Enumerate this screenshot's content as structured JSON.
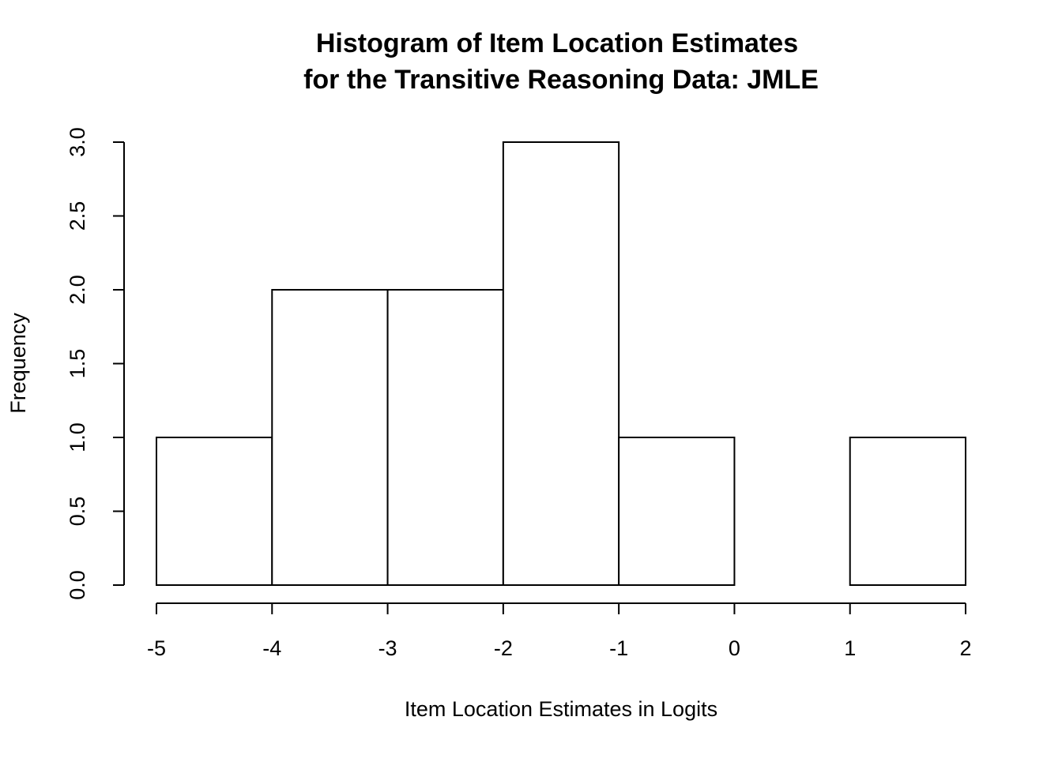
{
  "chart_data": {
    "type": "histogram",
    "title": [
      "Histogram of Item Location Estimates",
      "for the Transitive Reasoning Data: JMLE"
    ],
    "x_label": "Item Location Estimates in Logits",
    "y_label": "Frequency",
    "bins": [
      -5,
      -4,
      -3,
      -2,
      -1,
      0,
      1,
      2
    ],
    "values": [
      1,
      2,
      2,
      3,
      1,
      0,
      1
    ],
    "color": "#ffffff",
    "xlim": [
      -5,
      2
    ],
    "xticks": [
      -5,
      -4,
      -3,
      -2,
      -1,
      0,
      1,
      2
    ],
    "ylim": [
      0,
      3
    ],
    "yticks": [
      {
        "value": 0,
        "label": "0.0"
      },
      0.5,
      {
        "value": 1,
        "label": "1.0"
      },
      1.5,
      {
        "value": 2,
        "label": "2.0"
      },
      2.5,
      {
        "value": 3,
        "label": "3.0"
      }
    ]
  }
}
